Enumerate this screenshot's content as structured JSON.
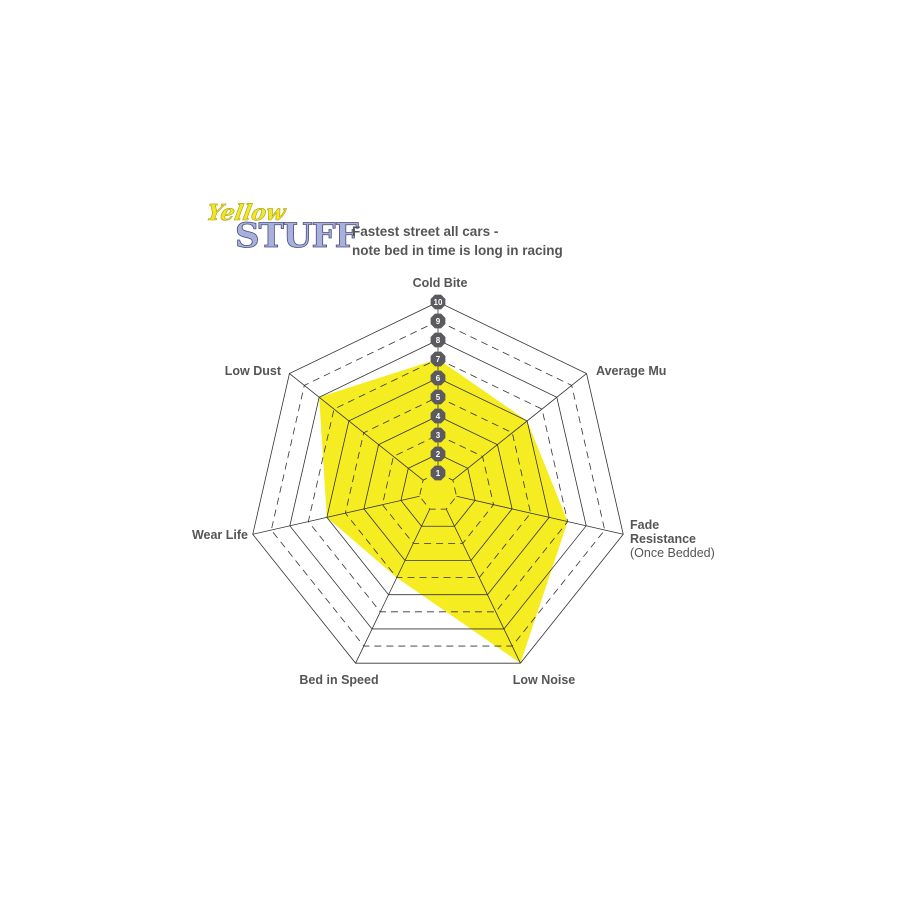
{
  "logo": {
    "line1": "Yellow",
    "line2": "STUFF"
  },
  "note": [
    "Fastest street all cars -",
    "note bed in time is long in racing"
  ],
  "chart_data": {
    "type": "radar",
    "axes": [
      {
        "label": [
          "Cold Bite"
        ],
        "value": 7
      },
      {
        "label": [
          "Average Mu"
        ],
        "value": 6
      },
      {
        "label": [
          "Fade",
          "Resistance",
          "(Once Bedded)"
        ],
        "value": 7
      },
      {
        "label": [
          "Low Noise"
        ],
        "value": 10
      },
      {
        "label": [
          "Bed in Speed"
        ],
        "value": 5
      },
      {
        "label": [
          "Wear Life"
        ],
        "value": 6
      },
      {
        "label": [
          "Low Dust"
        ],
        "value": 8
      }
    ],
    "scale_ticks": [
      "1",
      "2",
      "3",
      "4",
      "5",
      "6",
      "7",
      "8",
      "9",
      "10"
    ],
    "range": [
      0,
      10
    ],
    "fill_color": "#f5ec22",
    "badge_color": "#5b5b5f",
    "grid": true
  }
}
